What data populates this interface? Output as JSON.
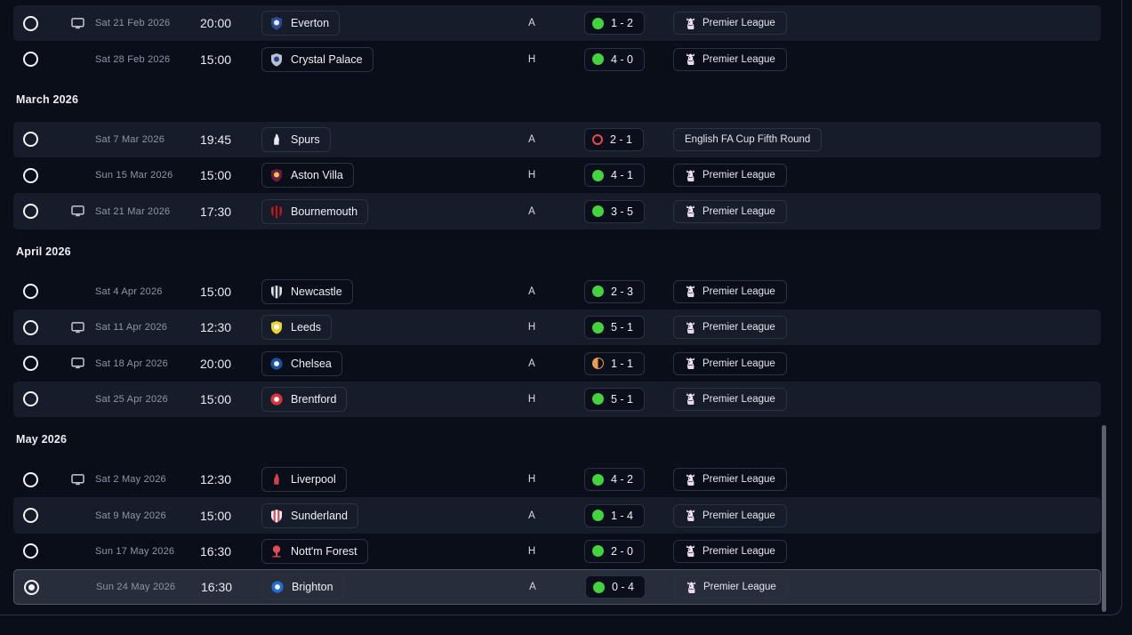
{
  "theme": {
    "background": "#0a0e19",
    "panel_border": "#2a3140",
    "row_light": "#171c2a",
    "row_selected": "#272d3a",
    "indicator_colors": {
      "win": "#42d33f",
      "loss": "#e5484d",
      "draw": "#f09a4e"
    }
  },
  "fixtures": {
    "sections": [
      {
        "header": null,
        "rows": [
          {
            "televised": true,
            "date": "Sat 21 Feb 2026",
            "time": "20:00",
            "team": "Everton",
            "badge": {
              "shape": "shield",
              "bg": "#2a4a9a",
              "fg": "#e8ecf2"
            },
            "venue": "A",
            "result": {
              "outcome": "win",
              "score": "1 - 2"
            },
            "competition": {
              "name": "Premier League",
              "has_badge": true
            },
            "selected": false
          },
          {
            "televised": false,
            "date": "Sat 28 Feb 2026",
            "time": "15:00",
            "team": "Crystal Palace",
            "badge": {
              "shape": "shield",
              "bg": "#b9c1ce",
              "fg": "#27408f"
            },
            "venue": "H",
            "result": {
              "outcome": "win",
              "score": "4 - 0"
            },
            "competition": {
              "name": "Premier League",
              "has_badge": true
            },
            "selected": false
          }
        ]
      },
      {
        "header": "March 2026",
        "rows": [
          {
            "televised": false,
            "date": "Sat 7 Mar 2026",
            "time": "19:45",
            "team": "Spurs",
            "badge": {
              "shape": "bird",
              "bg": "#e8ecf2",
              "fg": "#15233d"
            },
            "venue": "A",
            "result": {
              "outcome": "loss",
              "score": "2 - 1"
            },
            "competition": {
              "name": "English FA Cup Fifth Round",
              "has_badge": false
            },
            "selected": false
          },
          {
            "televised": false,
            "date": "Sun 15 Mar 2026",
            "time": "15:00",
            "team": "Aston Villa",
            "badge": {
              "shape": "shield",
              "bg": "#6b1b41",
              "fg": "#f0c548"
            },
            "venue": "H",
            "result": {
              "outcome": "win",
              "score": "4 - 1"
            },
            "competition": {
              "name": "Premier League",
              "has_badge": true
            },
            "selected": false
          },
          {
            "televised": true,
            "date": "Sat 21 Mar 2026",
            "time": "17:30",
            "team": "Bournemouth",
            "badge": {
              "shape": "shield-stripes",
              "bg": "#b01c24",
              "fg": "#17171c"
            },
            "venue": "A",
            "result": {
              "outcome": "win",
              "score": "3 - 5"
            },
            "competition": {
              "name": "Premier League",
              "has_badge": true
            },
            "selected": false
          }
        ]
      },
      {
        "header": "April 2026",
        "rows": [
          {
            "televised": false,
            "date": "Sat 4 Apr 2026",
            "time": "15:00",
            "team": "Newcastle",
            "badge": {
              "shape": "shield-stripes",
              "bg": "#dfe4ea",
              "fg": "#23262e"
            },
            "venue": "A",
            "result": {
              "outcome": "win",
              "score": "2 - 3"
            },
            "competition": {
              "name": "Premier League",
              "has_badge": true
            },
            "selected": false
          },
          {
            "televised": true,
            "date": "Sat 11 Apr 2026",
            "time": "12:30",
            "team": "Leeds",
            "badge": {
              "shape": "shield",
              "bg": "#ecd22f",
              "fg": "#ffffff"
            },
            "venue": "H",
            "result": {
              "outcome": "win",
              "score": "5 - 1"
            },
            "competition": {
              "name": "Premier League",
              "has_badge": true
            },
            "selected": false
          },
          {
            "televised": true,
            "date": "Sat 18 Apr 2026",
            "time": "20:00",
            "team": "Chelsea",
            "badge": {
              "shape": "circle",
              "bg": "#1e4f9c",
              "fg": "#ffffff"
            },
            "venue": "A",
            "result": {
              "outcome": "draw",
              "score": "1 - 1"
            },
            "competition": {
              "name": "Premier League",
              "has_badge": true
            },
            "selected": false
          },
          {
            "televised": false,
            "date": "Sat 25 Apr 2026",
            "time": "15:00",
            "team": "Brentford",
            "badge": {
              "shape": "circle",
              "bg": "#d8343c",
              "fg": "#ffffff"
            },
            "venue": "H",
            "result": {
              "outcome": "win",
              "score": "5 - 1"
            },
            "competition": {
              "name": "Premier League",
              "has_badge": true
            },
            "selected": false
          }
        ]
      },
      {
        "header": "May 2026",
        "rows": [
          {
            "televised": true,
            "date": "Sat 2 May 2026",
            "time": "12:30",
            "team": "Liverpool",
            "badge": {
              "shape": "bird",
              "bg": "#d6404a",
              "fg": "#d6404a"
            },
            "venue": "H",
            "result": {
              "outcome": "win",
              "score": "4 - 2"
            },
            "competition": {
              "name": "Premier League",
              "has_badge": true
            },
            "selected": false
          },
          {
            "televised": false,
            "date": "Sat 9 May 2026",
            "time": "15:00",
            "team": "Sunderland",
            "badge": {
              "shape": "shield-stripes",
              "bg": "#f0f2f5",
              "fg": "#d84b55"
            },
            "venue": "A",
            "result": {
              "outcome": "win",
              "score": "1 - 4"
            },
            "competition": {
              "name": "Premier League",
              "has_badge": true
            },
            "selected": false
          },
          {
            "televised": false,
            "date": "Sun 17 May 2026",
            "time": "16:30",
            "team": "Nott'm Forest",
            "badge": {
              "shape": "tree",
              "bg": "#e04b55",
              "fg": "#ffffff"
            },
            "venue": "H",
            "result": {
              "outcome": "win",
              "score": "2 - 0"
            },
            "competition": {
              "name": "Premier League",
              "has_badge": true
            },
            "selected": false
          },
          {
            "televised": false,
            "date": "Sun 24 May 2026",
            "time": "16:30",
            "team": "Brighton",
            "badge": {
              "shape": "circle",
              "bg": "#1f6fd0",
              "fg": "#ffffff"
            },
            "venue": "A",
            "result": {
              "outcome": "win",
              "score": "0 - 4"
            },
            "competition": {
              "name": "Premier League",
              "has_badge": true
            },
            "selected": true
          }
        ]
      }
    ]
  }
}
